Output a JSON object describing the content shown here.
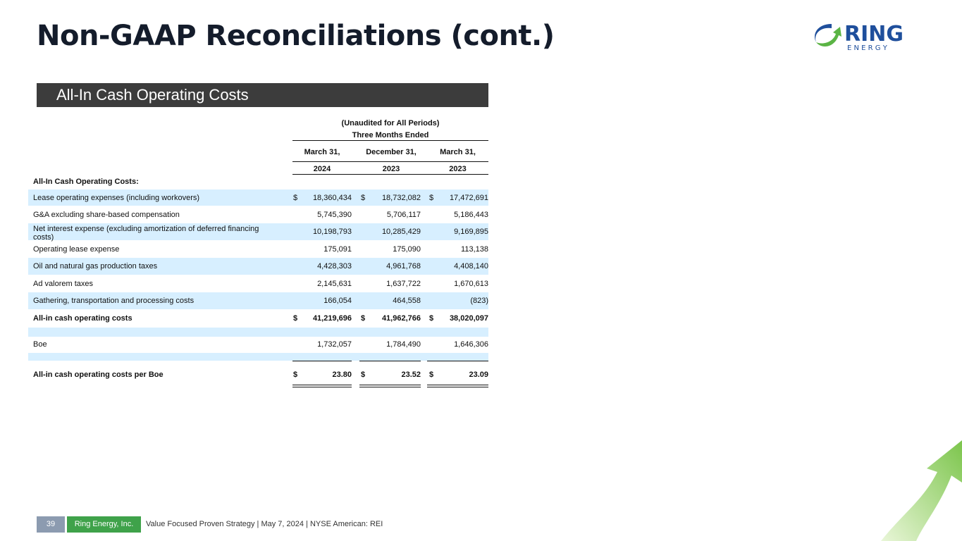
{
  "title": "Non-GAAP Reconciliations (cont.)",
  "logo": {
    "main": "RING",
    "sub": "E N E R G Y"
  },
  "banner": "All-In Cash Operating Costs",
  "table": {
    "super1": "(Unaudited for All Periods)",
    "super2": "Three Months Ended",
    "columns": [
      {
        "month": "March 31,",
        "year": "2024"
      },
      {
        "month": "December 31,",
        "year": "2023"
      },
      {
        "month": "March 31,",
        "year": "2023"
      }
    ],
    "section": "All-In Cash Operating Costs:",
    "rows": [
      {
        "label": "Lease operating expenses (including workovers)",
        "values": [
          "18,360,434",
          "18,732,082",
          "17,472,691"
        ],
        "currency": "$"
      },
      {
        "label": "G&A excluding share-based compensation",
        "values": [
          "5,745,390",
          "5,706,117",
          "5,186,443"
        ]
      },
      {
        "label": "Net interest expense (excluding amortization of deferred financing costs)",
        "values": [
          "10,198,793",
          "10,285,429",
          "9,169,895"
        ]
      },
      {
        "label": "Operating lease expense",
        "values": [
          "175,091",
          "175,090",
          "113,138"
        ]
      },
      {
        "label": "Oil and natural gas production taxes",
        "values": [
          "4,428,303",
          "4,961,768",
          "4,408,140"
        ]
      },
      {
        "label": "Ad valorem taxes",
        "values": [
          "2,145,631",
          "1,637,722",
          "1,670,613"
        ]
      },
      {
        "label": "Gathering, transportation and processing costs",
        "values": [
          "166,054",
          "464,558",
          "(823)"
        ]
      },
      {
        "label": "All-in cash operating costs",
        "values": [
          "41,219,696",
          "41,962,766",
          "38,020,097"
        ],
        "currency": "$"
      },
      {
        "label": "Boe",
        "values": [
          "1,732,057",
          "1,784,490",
          "1,646,306"
        ]
      },
      {
        "label": "All-in cash operating costs per Boe",
        "values": [
          "23.80",
          "23.52",
          "23.09"
        ],
        "currency": "$"
      }
    ]
  },
  "footer": {
    "page": "39",
    "company": "Ring Energy, Inc.",
    "text": "Value Focused Proven Strategy  | May 7, 2024 |  NYSE American: REI"
  }
}
